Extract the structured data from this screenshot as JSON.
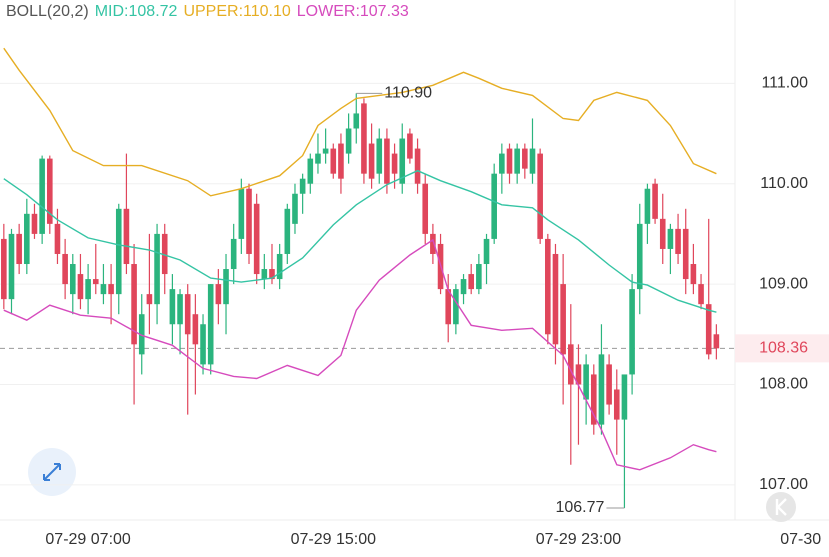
{
  "chart_data": {
    "type": "candlestick",
    "indicator": "BOLL(20,2)",
    "up_color": "#2bb47e",
    "down_color": "#e0465b",
    "candles": [
      [
        109.45,
        109.6,
        108.75,
        108.85
      ],
      [
        108.85,
        109.55,
        108.7,
        109.5
      ],
      [
        109.5,
        109.6,
        109.1,
        109.2
      ],
      [
        109.2,
        109.85,
        109.1,
        109.7
      ],
      [
        109.7,
        109.8,
        109.45,
        109.5
      ],
      [
        109.5,
        110.28,
        109.4,
        110.25
      ],
      [
        110.25,
        110.28,
        109.5,
        109.6
      ],
      [
        109.6,
        109.75,
        109.2,
        109.3
      ],
      [
        109.3,
        109.45,
        108.85,
        109.0
      ],
      [
        108.9,
        109.3,
        108.7,
        109.2
      ],
      [
        109.1,
        109.3,
        108.75,
        108.85
      ],
      [
        108.85,
        109.2,
        108.7,
        109.05
      ],
      [
        109.05,
        109.4,
        108.9,
        109.0
      ],
      [
        108.9,
        109.2,
        108.8,
        109.0
      ],
      [
        109.0,
        109.2,
        108.6,
        108.9
      ],
      [
        108.9,
        109.8,
        108.7,
        109.75
      ],
      [
        109.75,
        110.3,
        109.1,
        109.2
      ],
      [
        109.2,
        109.4,
        107.8,
        108.4
      ],
      [
        108.3,
        108.9,
        108.1,
        108.7
      ],
      [
        108.9,
        109.5,
        108.5,
        108.8
      ],
      [
        108.8,
        109.6,
        108.6,
        109.5
      ],
      [
        109.5,
        109.6,
        108.9,
        109.1
      ],
      [
        108.6,
        109.1,
        108.4,
        108.95
      ],
      [
        108.6,
        108.95,
        108.3,
        108.9
      ],
      [
        108.9,
        109.0,
        107.7,
        108.5
      ],
      [
        108.7,
        108.9,
        107.9,
        108.4
      ],
      [
        108.2,
        108.7,
        108.1,
        108.6
      ],
      [
        108.2,
        109.0,
        108.1,
        109.0
      ],
      [
        109.0,
        109.15,
        108.6,
        108.8
      ],
      [
        108.8,
        109.3,
        108.5,
        109.15
      ],
      [
        109.15,
        109.6,
        109.0,
        109.45
      ],
      [
        109.45,
        110.05,
        109.3,
        109.95
      ],
      [
        109.95,
        110.0,
        109.2,
        109.3
      ],
      [
        109.8,
        109.9,
        109.0,
        109.1
      ],
      [
        109.05,
        109.3,
        108.95,
        109.15
      ],
      [
        109.15,
        109.4,
        109.0,
        109.05
      ],
      [
        109.05,
        109.4,
        108.95,
        109.3
      ],
      [
        109.3,
        109.8,
        109.2,
        109.75
      ],
      [
        109.6,
        110.0,
        109.5,
        109.9
      ],
      [
        109.9,
        110.1,
        109.7,
        110.05
      ],
      [
        110.0,
        110.3,
        109.9,
        110.25
      ],
      [
        110.2,
        110.5,
        110.1,
        110.3
      ],
      [
        110.3,
        110.55,
        110.2,
        110.35
      ],
      [
        110.35,
        110.4,
        110.05,
        110.1
      ],
      [
        110.4,
        110.5,
        109.9,
        110.05
      ],
      [
        110.3,
        110.7,
        110.2,
        110.55
      ],
      [
        110.55,
        110.9,
        110.4,
        110.7
      ],
      [
        110.8,
        110.85,
        110.0,
        110.1
      ],
      [
        110.4,
        110.6,
        109.95,
        110.05
      ],
      [
        110.1,
        110.55,
        110.0,
        110.45
      ],
      [
        110.45,
        110.55,
        109.9,
        110.0
      ],
      [
        110.3,
        110.4,
        109.95,
        110.1
      ],
      [
        110.0,
        110.6,
        109.9,
        110.45
      ],
      [
        110.5,
        110.55,
        110.2,
        110.25
      ],
      [
        110.35,
        110.45,
        109.9,
        110.0
      ],
      [
        110.0,
        110.1,
        109.4,
        109.5
      ],
      [
        109.5,
        109.6,
        109.2,
        109.3
      ],
      [
        109.4,
        109.5,
        108.9,
        108.95
      ],
      [
        108.95,
        109.1,
        108.42,
        108.6
      ],
      [
        108.6,
        109.0,
        108.5,
        108.95
      ],
      [
        108.9,
        109.1,
        108.8,
        109.05
      ],
      [
        109.1,
        109.2,
        108.9,
        108.95
      ],
      [
        108.95,
        109.3,
        108.9,
        109.2
      ],
      [
        109.2,
        109.5,
        109.0,
        109.45
      ],
      [
        109.45,
        110.2,
        109.4,
        110.1
      ],
      [
        110.1,
        110.4,
        109.9,
        110.3
      ],
      [
        110.35,
        110.4,
        110.0,
        110.1
      ],
      [
        110.1,
        110.4,
        110.0,
        110.35
      ],
      [
        110.35,
        110.4,
        110.05,
        110.15
      ],
      [
        110.1,
        110.65,
        110.0,
        110.35
      ],
      [
        110.3,
        110.35,
        109.4,
        109.45
      ],
      [
        109.45,
        109.5,
        108.4,
        108.5
      ],
      [
        109.3,
        109.4,
        108.2,
        108.4
      ],
      [
        109.0,
        109.3,
        107.8,
        108.3
      ],
      [
        108.4,
        108.8,
        107.2,
        108.0
      ],
      [
        108.2,
        108.4,
        107.4,
        108.0
      ],
      [
        107.85,
        108.3,
        107.6,
        108.2
      ],
      [
        108.1,
        108.2,
        107.5,
        107.6
      ],
      [
        107.6,
        108.6,
        107.5,
        108.3
      ],
      [
        108.2,
        108.3,
        107.7,
        107.8
      ],
      [
        107.95,
        108.15,
        107.3,
        107.65
      ],
      [
        107.65,
        108.1,
        106.77,
        108.1
      ],
      [
        108.1,
        109.1,
        107.9,
        108.95
      ],
      [
        108.95,
        109.8,
        108.7,
        109.6
      ],
      [
        109.6,
        110.0,
        109.4,
        109.95
      ],
      [
        110.0,
        110.05,
        109.6,
        109.65
      ],
      [
        109.65,
        109.9,
        109.2,
        109.35
      ],
      [
        109.35,
        109.6,
        109.1,
        109.55
      ],
      [
        109.55,
        109.7,
        109.2,
        109.3
      ],
      [
        109.55,
        109.75,
        108.9,
        109.05
      ],
      [
        109.2,
        109.4,
        108.9,
        109.0
      ],
      [
        109.0,
        109.1,
        108.75,
        108.8
      ],
      [
        108.8,
        109.65,
        108.25,
        108.3
      ],
      [
        108.5,
        108.6,
        108.25,
        108.36
      ]
    ],
    "series": [
      {
        "name": "MID",
        "label": "MID:108.72",
        "color": "#35c4a4",
        "x": [
          0,
          3,
          7,
          11,
          15,
          19,
          23,
          27,
          31,
          35,
          39,
          43,
          46,
          50,
          54,
          57,
          61,
          65,
          69,
          71,
          75,
          79,
          82,
          84,
          88,
          92,
          93
        ],
        "values": [
          110.05,
          109.89,
          109.64,
          109.46,
          109.39,
          109.34,
          109.24,
          109.06,
          109.02,
          109.06,
          109.26,
          109.59,
          109.79,
          109.99,
          110.13,
          110.03,
          109.92,
          109.79,
          109.76,
          109.64,
          109.44,
          109.19,
          109.02,
          108.99,
          108.84,
          108.74,
          108.72
        ]
      },
      {
        "name": "UPPER",
        "label": "UPPER:110.10",
        "color": "#e6ae24",
        "x": [
          0,
          2,
          6,
          9,
          13,
          18,
          24,
          27,
          31,
          36,
          39,
          41,
          44,
          46,
          49,
          52,
          56,
          60,
          62,
          65,
          69,
          73,
          75,
          77,
          80,
          84,
          87,
          90,
          93
        ],
        "values": [
          111.35,
          111.13,
          110.73,
          110.33,
          110.18,
          110.18,
          110.03,
          109.88,
          109.95,
          110.08,
          110.28,
          110.58,
          110.75,
          110.85,
          110.88,
          110.91,
          110.98,
          111.11,
          111.05,
          110.95,
          110.88,
          110.65,
          110.63,
          110.83,
          110.91,
          110.83,
          110.58,
          110.2,
          110.1
        ]
      },
      {
        "name": "LOWER",
        "label": "LOWER:107.33",
        "color": "#d64bbd",
        "x": [
          0,
          3,
          6,
          10,
          14,
          18,
          22,
          26,
          30,
          33,
          37,
          41,
          44,
          46,
          49,
          53,
          56,
          58,
          61,
          65,
          69,
          73,
          75,
          78,
          80,
          83,
          87,
          90,
          92,
          93
        ],
        "values": [
          108.74,
          108.64,
          108.79,
          108.69,
          108.66,
          108.49,
          108.39,
          108.16,
          108.08,
          108.06,
          108.19,
          108.09,
          108.29,
          108.74,
          109.04,
          109.29,
          109.44,
          108.94,
          108.59,
          108.54,
          108.56,
          108.29,
          107.99,
          107.55,
          107.2,
          107.15,
          107.27,
          107.4,
          107.35,
          107.33
        ]
      }
    ],
    "annotations": [
      {
        "x": 46,
        "value": 110.9,
        "label": "110.90"
      },
      {
        "x": 81,
        "value": 106.77
      }
    ],
    "current_price": 108.36,
    "xlim": [
      -0.5,
      107.7
    ],
    "ylim": [
      106.65,
      111.83
    ],
    "yticks": [
      {
        "value": 111,
        "label": "111.00"
      },
      {
        "value": 110,
        "label": "110.00"
      },
      {
        "value": 109,
        "label": "109.00"
      },
      {
        "value": 108,
        "label": "108.00"
      },
      {
        "value": 107,
        "label": "107.00"
      }
    ],
    "xticks": [
      {
        "value": 11,
        "label": "07-29 07:00"
      },
      {
        "value": 43,
        "label": "07-29 15:00"
      },
      {
        "value": 75,
        "label": "07-29 23:00"
      },
      {
        "value": 104,
        "label": "07-30"
      }
    ],
    "grid": true
  }
}
